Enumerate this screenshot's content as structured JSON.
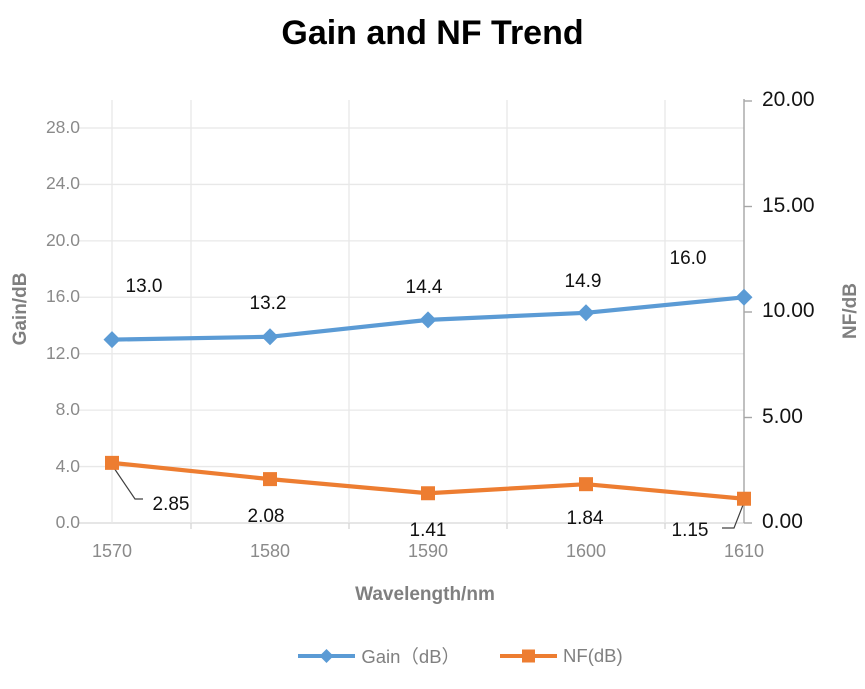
{
  "title": "Gain and NF Trend",
  "chart_data": {
    "type": "line",
    "categories": [
      "1570",
      "1580",
      "1590",
      "1600",
      "1610"
    ],
    "xlabel": "Wavelength/nm",
    "grid": true,
    "legend_position": "bottom",
    "series": [
      {
        "name": "Gain（dB）",
        "axis": "left",
        "marker": "diamond",
        "color": "#5B9BD5",
        "values": [
          13.0,
          13.2,
          14.4,
          14.9,
          16.0
        ],
        "labels": [
          "13.0",
          "13.2",
          "14.4",
          "14.9",
          "16.0"
        ]
      },
      {
        "name": "NF(dB)",
        "axis": "right",
        "marker": "square",
        "color": "#ED7D31",
        "values": [
          2.85,
          2.08,
          1.41,
          1.84,
          1.15
        ],
        "labels": [
          "2.85",
          "2.08",
          "1.41",
          "1.84",
          "1.15"
        ]
      }
    ],
    "left_axis": {
      "title": "Gain/dB",
      "min": 0,
      "max": 28,
      "tick_values": [
        0,
        4,
        8,
        12,
        16,
        20,
        24,
        28
      ],
      "tick_labels": [
        "0.0",
        "4.0",
        "8.0",
        "12.0",
        "16.0",
        "20.0",
        "24.0",
        "28.0"
      ]
    },
    "right_axis": {
      "title": "NF/dB",
      "min": 0,
      "max": 20,
      "tick_values": [
        0,
        5,
        10,
        15,
        20
      ],
      "tick_labels": [
        "0.00",
        "5.00",
        "10.00",
        "15.00",
        "20.00"
      ]
    },
    "colors": {
      "gridline": "#e8e8e8",
      "baseline": "#d6d6d6",
      "right_axis_line": "#a6a6a6",
      "leader_line": "#404040",
      "gain_series": "#5B9BD5",
      "nf_series": "#ED7D31"
    }
  }
}
